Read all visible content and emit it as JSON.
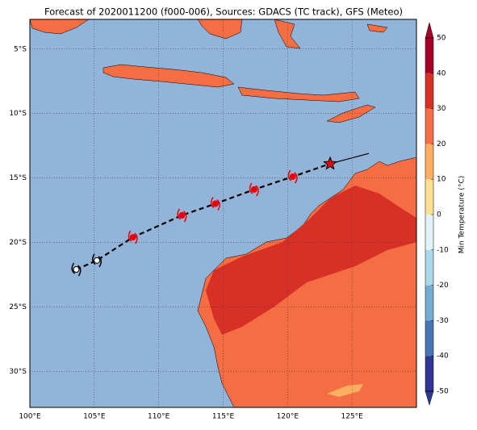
{
  "chart_data": {
    "type": "map",
    "title": "Forecast of 2020011200 (f000-006), Sources: GDACS (TC track), GFS (Meteo)",
    "xlim": [
      100,
      130
    ],
    "ylim": [
      -32.8,
      -2.7
    ],
    "xticks": [
      {
        "value": 100,
        "label": "100°E"
      },
      {
        "value": 105,
        "label": "105°E"
      },
      {
        "value": 110,
        "label": "110°E"
      },
      {
        "value": 115,
        "label": "115°E"
      },
      {
        "value": 120,
        "label": "120°E"
      },
      {
        "value": 125,
        "label": "125°E"
      }
    ],
    "yticks": [
      {
        "value": -5,
        "label": "5°S"
      },
      {
        "value": -10,
        "label": "10°S"
      },
      {
        "value": -15,
        "label": "15°S"
      },
      {
        "value": -20,
        "label": "20°S"
      },
      {
        "value": -25,
        "label": "25°S"
      },
      {
        "value": -30,
        "label": "30°S"
      }
    ],
    "grid": true,
    "series": [
      {
        "color": "#ffffff",
        "x": [
          103.6,
          105.2
        ],
        "y": [
          -22.1,
          -21.4
        ]
      },
      {
        "color": "#e8000b",
        "x": [
          108.0,
          111.8,
          114.4,
          117.4,
          120.4
        ],
        "y": [
          -19.6,
          -17.9,
          -17.0,
          -15.9,
          -14.9
        ]
      }
    ],
    "current": {
      "color": "#e8000b",
      "x": 123.3,
      "y": -13.9
    },
    "heading": {
      "x": [
        123.3,
        126.3
      ],
      "y": [
        -13.9,
        -13.1
      ]
    },
    "colorbar": {
      "label": "Min Temperature (°C)",
      "ticks": [
        -50,
        -40,
        -30,
        -20,
        -10,
        0,
        10,
        20,
        30,
        40,
        50
      ],
      "colors": [
        "#313695",
        "#4575b4",
        "#74add1",
        "#abd9e9",
        "#e0f3f8",
        "#fee090",
        "#fdae61",
        "#f46d43",
        "#d73027",
        "#a50026"
      ]
    }
  }
}
